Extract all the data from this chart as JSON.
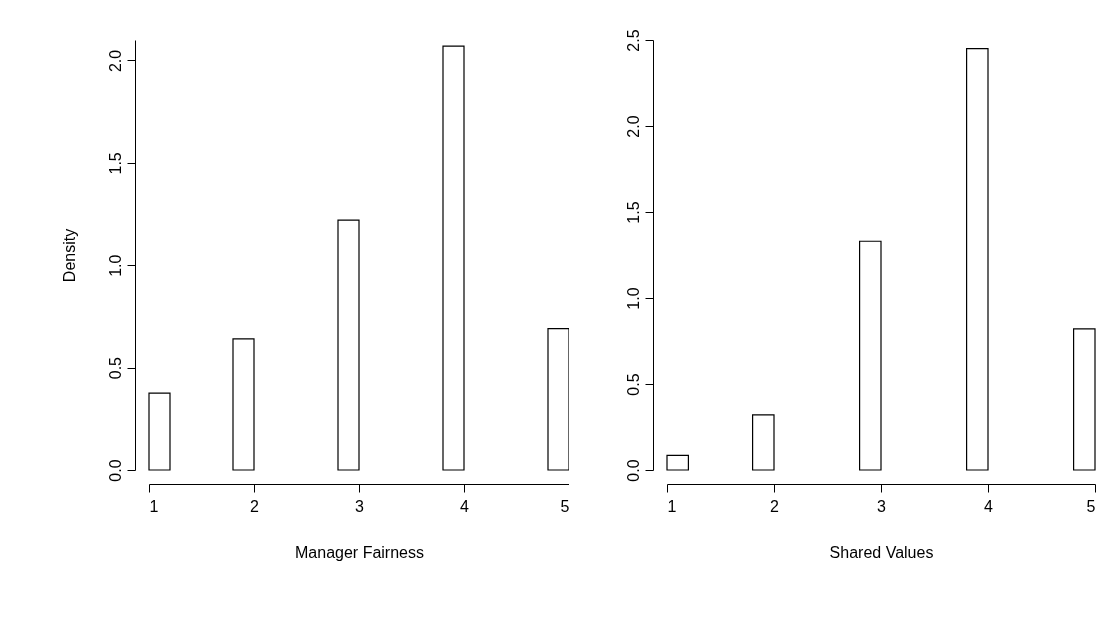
{
  "chart_data": [
    {
      "type": "histogram",
      "xlabel": "Manager Fairness",
      "ylabel": "Density",
      "color": "#ffffff",
      "bins": [
        1,
        1.2,
        1.4,
        1.6,
        1.8,
        2,
        2.2,
        2.4,
        2.6,
        2.8,
        3,
        3.2,
        3.4,
        3.6,
        3.8,
        4,
        4.2,
        4.4,
        4.6,
        4.8,
        5
      ],
      "values": [
        0.375,
        0,
        0,
        0,
        0.64,
        0,
        0,
        0,
        0,
        1.22,
        0,
        0,
        0,
        0,
        2.07,
        0,
        0,
        0,
        0,
        0.69
      ],
      "xlim": [
        1,
        5
      ],
      "ylim": [
        0,
        2.1
      ],
      "xticks": [
        1,
        2,
        3,
        4,
        5
      ],
      "yticks": [
        {
          "value": 0,
          "label": "0.0"
        },
        0.5,
        {
          "value": 1,
          "label": "1.0"
        },
        1.5,
        {
          "value": 2,
          "label": "2.0"
        }
      ]
    },
    {
      "type": "histogram",
      "xlabel": "Shared Values",
      "color": "#ffffff",
      "bins": [
        1,
        1.2,
        1.4,
        1.6,
        1.8,
        2,
        2.2,
        2.4,
        2.6,
        2.8,
        3,
        3.2,
        3.4,
        3.6,
        3.8,
        4,
        4.2,
        4.4,
        4.6,
        4.8,
        5
      ],
      "values": [
        0.085,
        0,
        0,
        0,
        0.32,
        0,
        0,
        0,
        0,
        1.33,
        0,
        0,
        0,
        0,
        2.45,
        0,
        0,
        0,
        0,
        0.82
      ],
      "xlim": [
        1,
        5
      ],
      "ylim": [
        0,
        2.5
      ],
      "xticks": [
        1,
        2,
        3,
        4,
        5
      ],
      "yticks": [
        {
          "value": 0,
          "label": "0.0"
        },
        0.5,
        {
          "value": 1,
          "label": "1.0"
        },
        1.5,
        {
          "value": 2,
          "label": "2.0"
        },
        2.5
      ]
    }
  ]
}
